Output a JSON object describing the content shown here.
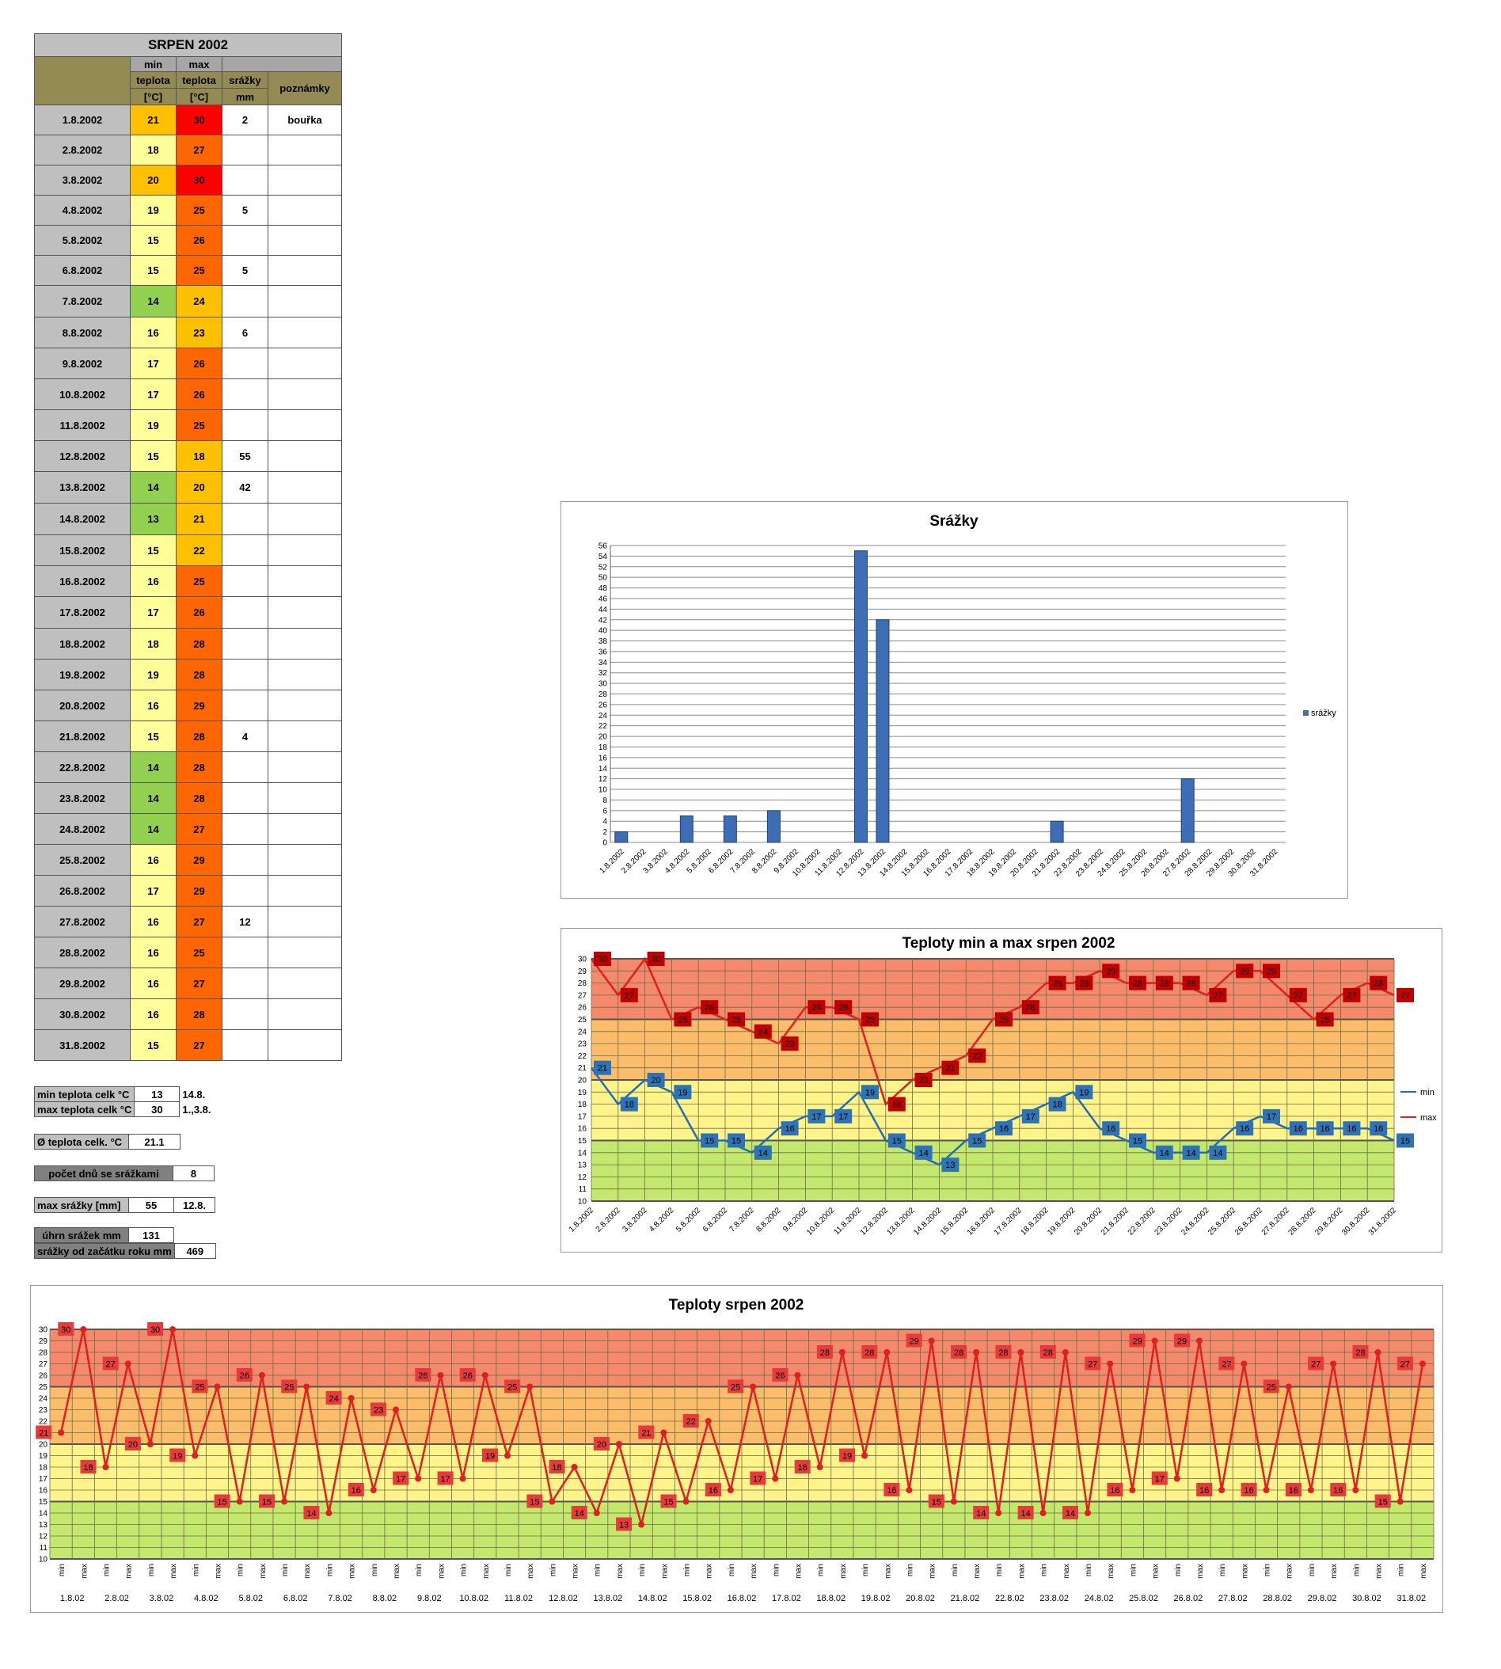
{
  "table": {
    "title": "SRPEN 2002",
    "hdr_min": "min",
    "hdr_max": "max",
    "hdr_teplota": "teplota",
    "hdr_unit": "[°C]",
    "hdr_srazky": "srážky",
    "hdr_mm": "mm",
    "hdr_poznamky": "poznámky",
    "rows": [
      {
        "date": "1.8.2002",
        "min": "21",
        "max": "30",
        "rain": "2",
        "note": "bouřka"
      },
      {
        "date": "2.8.2002",
        "min": "18",
        "max": "27",
        "rain": "",
        "note": ""
      },
      {
        "date": "3.8.2002",
        "min": "20",
        "max": "30",
        "rain": "",
        "note": ""
      },
      {
        "date": "4.8.2002",
        "min": "19",
        "max": "25",
        "rain": "5",
        "note": ""
      },
      {
        "date": "5.8.2002",
        "min": "15",
        "max": "26",
        "rain": "",
        "note": ""
      },
      {
        "date": "6.8.2002",
        "min": "15",
        "max": "25",
        "rain": "5",
        "note": ""
      },
      {
        "date": "7.8.2002",
        "min": "14",
        "max": "24",
        "rain": "",
        "note": ""
      },
      {
        "date": "8.8.2002",
        "min": "16",
        "max": "23",
        "rain": "6",
        "note": ""
      },
      {
        "date": "9.8.2002",
        "min": "17",
        "max": "26",
        "rain": "",
        "note": ""
      },
      {
        "date": "10.8.2002",
        "min": "17",
        "max": "26",
        "rain": "",
        "note": ""
      },
      {
        "date": "11.8.2002",
        "min": "19",
        "max": "25",
        "rain": "",
        "note": ""
      },
      {
        "date": "12.8.2002",
        "min": "15",
        "max": "18",
        "rain": "55",
        "note": ""
      },
      {
        "date": "13.8.2002",
        "min": "14",
        "max": "20",
        "rain": "42",
        "note": ""
      },
      {
        "date": "14.8.2002",
        "min": "13",
        "max": "21",
        "rain": "",
        "note": ""
      },
      {
        "date": "15.8.2002",
        "min": "15",
        "max": "22",
        "rain": "",
        "note": ""
      },
      {
        "date": "16.8.2002",
        "min": "16",
        "max": "25",
        "rain": "",
        "note": ""
      },
      {
        "date": "17.8.2002",
        "min": "17",
        "max": "26",
        "rain": "",
        "note": ""
      },
      {
        "date": "18.8.2002",
        "min": "18",
        "max": "28",
        "rain": "",
        "note": ""
      },
      {
        "date": "19.8.2002",
        "min": "19",
        "max": "28",
        "rain": "",
        "note": ""
      },
      {
        "date": "20.8.2002",
        "min": "16",
        "max": "29",
        "rain": "",
        "note": ""
      },
      {
        "date": "21.8.2002",
        "min": "15",
        "max": "28",
        "rain": "4",
        "note": ""
      },
      {
        "date": "22.8.2002",
        "min": "14",
        "max": "28",
        "rain": "",
        "note": ""
      },
      {
        "date": "23.8.2002",
        "min": "14",
        "max": "28",
        "rain": "",
        "note": ""
      },
      {
        "date": "24.8.2002",
        "min": "14",
        "max": "27",
        "rain": "",
        "note": ""
      },
      {
        "date": "25.8.2002",
        "min": "16",
        "max": "29",
        "rain": "",
        "note": ""
      },
      {
        "date": "26.8.2002",
        "min": "17",
        "max": "29",
        "rain": "",
        "note": ""
      },
      {
        "date": "27.8.2002",
        "min": "16",
        "max": "27",
        "rain": "12",
        "note": ""
      },
      {
        "date": "28.8.2002",
        "min": "16",
        "max": "25",
        "rain": "",
        "note": ""
      },
      {
        "date": "29.8.2002",
        "min": "16",
        "max": "27",
        "rain": "",
        "note": ""
      },
      {
        "date": "30.8.2002",
        "min": "16",
        "max": "28",
        "rain": "",
        "note": ""
      },
      {
        "date": "31.8.2002",
        "min": "15",
        "max": "27",
        "rain": "",
        "note": ""
      }
    ]
  },
  "summary": {
    "min_label": "min teplota celk °C",
    "min_value": "13",
    "min_date": "14.8.",
    "max_label": "max teplota celk °C",
    "max_value": "30",
    "max_date": "1.,3.8.",
    "avg_label": "Ø teplota celk. °C",
    "avg_value": "21.1",
    "raindays_label": "počet dnů se srážkami",
    "raindays_value": "8",
    "maxrain_label": "max srážky [mm]",
    "maxrain_value": "55",
    "maxrain_date": "12.8.",
    "total_label": "úhrn srážek  mm",
    "total_value": "131",
    "ytd_label": "srážky od začátku roku mm",
    "ytd_value": "469"
  },
  "colors": {
    "min_cold": "#92d050",
    "min_mild": "#ffff99",
    "min_warm": "#ffc000",
    "max_warm": "#ffc000",
    "max_hot": "#ff6600",
    "max_vhot": "#ff0000",
    "band_green": "#c4e86e",
    "band_yellow": "#fff38a",
    "band_orange": "#fbbd6a",
    "band_red": "#f4896b",
    "min_line": "#1f6fb2",
    "max_line": "#e02020",
    "bar": "#3d6db5"
  },
  "chart_data": [
    {
      "type": "bar",
      "title": "Srážky",
      "categories": [
        "1.8.2002",
        "2.8.2002",
        "3.8.2002",
        "4.8.2002",
        "5.8.2002",
        "6.8.2002",
        "7.8.2002",
        "8.8.2002",
        "9.8.2002",
        "10.8.2002",
        "11.8.2002",
        "12.8.2002",
        "13.8.2002",
        "14.8.2002",
        "15.8.2002",
        "16.8.2002",
        "17.8.2002",
        "18.8.2002",
        "19.8.2002",
        "20.8.2002",
        "21.8.2002",
        "22.8.2002",
        "23.8.2002",
        "24.8.2002",
        "25.8.2002",
        "26.8.2002",
        "27.8.2002",
        "28.8.2002",
        "29.8.2002",
        "30.8.2002",
        "31.8.2002"
      ],
      "series": [
        {
          "name": "srážky",
          "values": [
            2,
            0,
            0,
            5,
            0,
            5,
            0,
            6,
            0,
            0,
            0,
            55,
            42,
            0,
            0,
            0,
            0,
            0,
            0,
            0,
            4,
            0,
            0,
            0,
            0,
            0,
            12,
            0,
            0,
            0,
            0
          ]
        }
      ],
      "ylim": [
        0,
        56
      ],
      "ytick_step": 2,
      "grid": true,
      "legend": "right"
    },
    {
      "type": "line",
      "title": "Teploty min a  max srpen 2002",
      "categories": [
        "1.8.2002",
        "2.8.2002",
        "3.8.2002",
        "4.8.2002",
        "5.8.2002",
        "6.8.2002",
        "7.8.2002",
        "8.8.2002",
        "9.8.2002",
        "10.8.2002",
        "11.8.2002",
        "12.8.2002",
        "13.8.2002",
        "14.8.2002",
        "15.8.2002",
        "16.8.2002",
        "17.8.2002",
        "18.8.2002",
        "19.8.2002",
        "20.8.2002",
        "21.8.2002",
        "22.8.2002",
        "23.8.2002",
        "24.8.2002",
        "25.8.2002",
        "26.8.2002",
        "27.8.2002",
        "28.8.2002",
        "29.8.2002",
        "30.8.2002",
        "31.8.2002"
      ],
      "series": [
        {
          "name": "min",
          "values": [
            21,
            18,
            20,
            19,
            15,
            15,
            14,
            16,
            17,
            17,
            19,
            15,
            14,
            13,
            15,
            16,
            17,
            18,
            19,
            16,
            15,
            14,
            14,
            14,
            16,
            17,
            16,
            16,
            16,
            16,
            15
          ]
        },
        {
          "name": "max",
          "values": [
            30,
            27,
            30,
            25,
            26,
            25,
            24,
            23,
            26,
            26,
            25,
            18,
            20,
            21,
            22,
            25,
            26,
            28,
            28,
            29,
            28,
            28,
            28,
            27,
            29,
            29,
            27,
            25,
            27,
            28,
            27
          ]
        }
      ],
      "ylim": [
        10,
        30
      ],
      "grid": true,
      "legend": "right"
    },
    {
      "type": "line",
      "title": "Teploty srpen 2002",
      "x_labels": [
        "min",
        "max"
      ],
      "groups": [
        "1.8.02",
        "2.8.02",
        "3.8.02",
        "4.8.02",
        "5.8.02",
        "6.8.02",
        "7.8.02",
        "8.8.02",
        "9.8.02",
        "10.8.02",
        "11.8.02",
        "12.8.02",
        "13.8.02",
        "14.8.02",
        "15.8.02",
        "16.8.02",
        "17.8.02",
        "18.8.02",
        "19.8.02",
        "20.8.02",
        "21.8.02",
        "22.8.02",
        "23.8.02",
        "24.8.02",
        "25.8.02",
        "26.8.02",
        "27.8.02",
        "28.8.02",
        "29.8.02",
        "30.8.02",
        "31.8.02"
      ],
      "values": [
        21,
        30,
        18,
        27,
        20,
        30,
        19,
        25,
        15,
        26,
        15,
        25,
        14,
        24,
        16,
        23,
        17,
        26,
        17,
        26,
        19,
        25,
        15,
        18,
        14,
        20,
        13,
        21,
        15,
        22,
        16,
        25,
        17,
        26,
        18,
        28,
        19,
        28,
        16,
        29,
        15,
        28,
        14,
        28,
        14,
        28,
        14,
        27,
        16,
        29,
        17,
        29,
        16,
        27,
        16,
        25,
        16,
        27,
        16,
        28,
        15,
        27
      ],
      "ylim": [
        10,
        30
      ],
      "grid": true
    }
  ]
}
